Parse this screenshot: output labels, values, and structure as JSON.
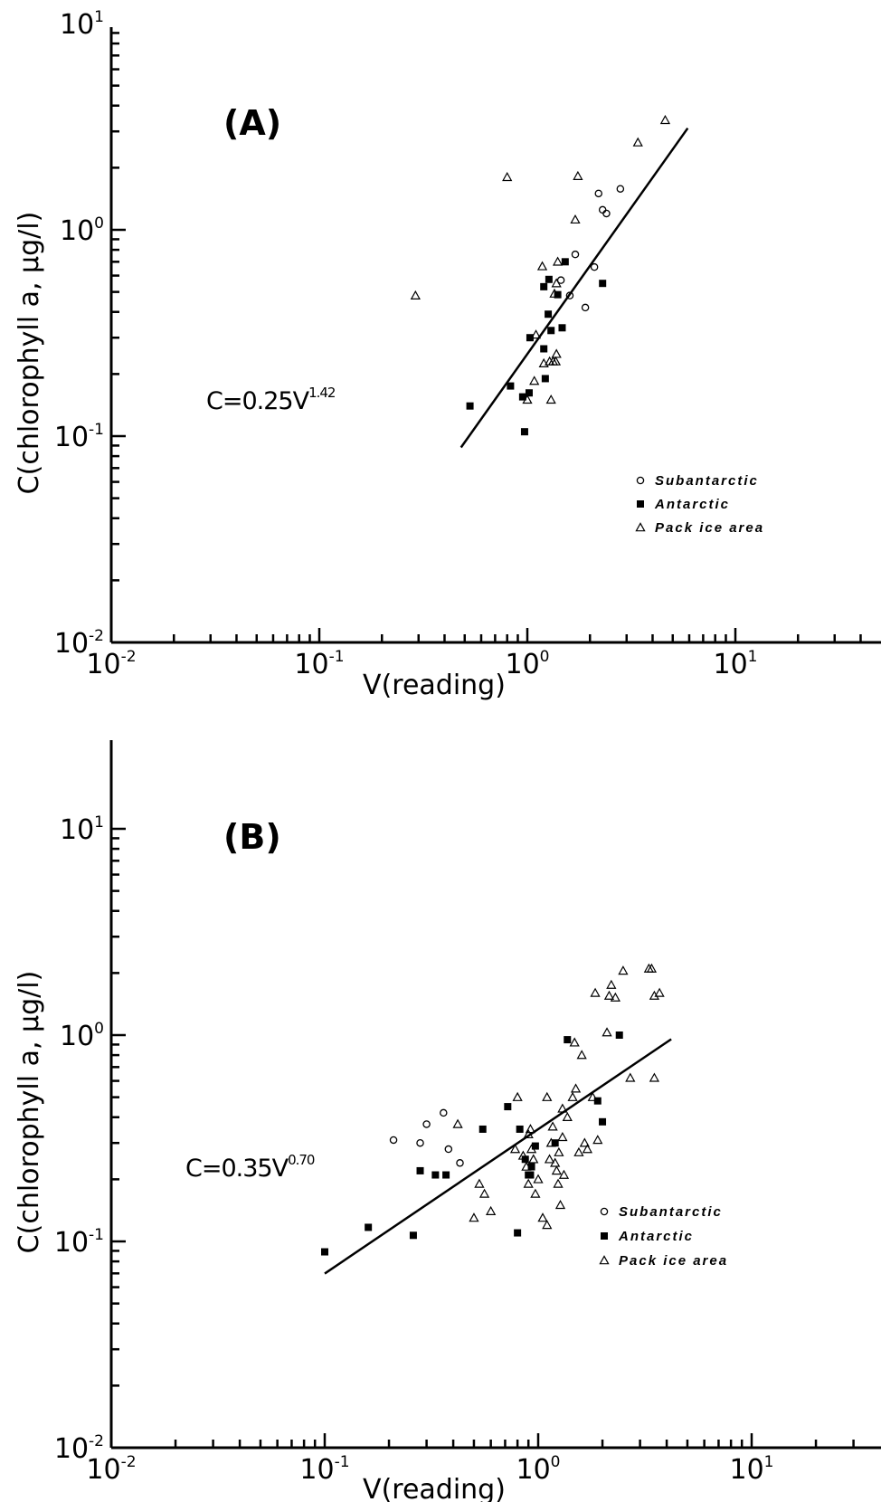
{
  "chart_data": [
    {
      "type": "scatter",
      "panel_label": "(A)",
      "equation": {
        "base": "C=0.25V",
        "exponent": "1.42"
      },
      "xlabel": "V(reading)",
      "ylabel": "C(chlorophyll a, µg/l)",
      "x_scale": "log",
      "y_scale": "log",
      "xlim": [
        0.01,
        35
      ],
      "ylim": [
        0.01,
        10
      ],
      "xticks": [
        {
          "value": 0.01,
          "base": "10",
          "exp": "-2"
        },
        {
          "value": 0.1,
          "base": "10",
          "exp": "-1"
        },
        {
          "value": 1,
          "base": "10",
          "exp": "0"
        },
        {
          "value": 10,
          "base": "10",
          "exp": "1"
        }
      ],
      "yticks": [
        {
          "value": 0.01,
          "base": "10",
          "exp": "-2"
        },
        {
          "value": 0.1,
          "base": "10",
          "exp": "-1"
        },
        {
          "value": 1,
          "base": "10",
          "exp": "0"
        },
        {
          "value": 10,
          "base": "10",
          "exp": "1"
        }
      ],
      "legend_position": "bottom-right",
      "fit_line": {
        "a": 0.25,
        "b": 1.42,
        "x_range": [
          0.48,
          5.9
        ]
      },
      "series": [
        {
          "name": "Subantarctic",
          "marker": "circle-open",
          "points": [
            [
              2.2,
              1.5
            ],
            [
              2.3,
              1.25
            ],
            [
              2.4,
              1.2
            ],
            [
              2.8,
              1.58
            ],
            [
              1.7,
              0.76
            ],
            [
              1.45,
              0.57
            ],
            [
              1.6,
              0.48
            ],
            [
              2.1,
              0.66
            ],
            [
              1.9,
              0.42
            ]
          ]
        },
        {
          "name": "Antarctic",
          "marker": "square-filled",
          "points": [
            [
              0.53,
              0.14
            ],
            [
              0.83,
              0.175
            ],
            [
              0.95,
              0.155
            ],
            [
              0.97,
              0.105
            ],
            [
              1.02,
              0.162
            ],
            [
              1.03,
              0.3
            ],
            [
              1.2,
              0.265
            ],
            [
              1.2,
              0.53
            ],
            [
              1.22,
              0.19
            ],
            [
              1.26,
              0.39
            ],
            [
              1.27,
              0.575
            ],
            [
              1.3,
              0.325
            ],
            [
              1.4,
              0.485
            ],
            [
              1.47,
              0.335
            ],
            [
              1.52,
              0.7
            ],
            [
              2.3,
              0.55
            ]
          ]
        },
        {
          "name": "Pack ice area",
          "marker": "triangle-open",
          "points": [
            [
              0.29,
              0.48
            ],
            [
              0.8,
              1.8
            ],
            [
              1.0,
              0.15
            ],
            [
              1.08,
              0.185
            ],
            [
              1.1,
              0.31
            ],
            [
              1.18,
              0.665
            ],
            [
              1.2,
              0.225
            ],
            [
              1.28,
              0.23
            ],
            [
              1.3,
              0.15
            ],
            [
              1.33,
              0.23
            ],
            [
              1.37,
              0.23
            ],
            [
              1.38,
              0.25
            ],
            [
              1.38,
              0.55
            ],
            [
              1.4,
              0.7
            ],
            [
              1.35,
              0.49
            ],
            [
              1.7,
              1.12
            ],
            [
              1.75,
              1.82
            ],
            [
              3.4,
              2.65
            ],
            [
              4.6,
              3.4
            ]
          ]
        }
      ]
    },
    {
      "type": "scatter",
      "panel_label": "(B)",
      "equation": {
        "base": "C=0.35V",
        "exponent": "0.70"
      },
      "xlabel": "V(reading)",
      "ylabel": "C(chlorophyll a, µg/l)",
      "x_scale": "log",
      "y_scale": "log",
      "xlim": [
        0.01,
        35
      ],
      "ylim": [
        0.01,
        10
      ],
      "xticks": [
        {
          "value": 0.01,
          "base": "10",
          "exp": "-2"
        },
        {
          "value": 0.1,
          "base": "10",
          "exp": "-1"
        },
        {
          "value": 1,
          "base": "10",
          "exp": "0"
        },
        {
          "value": 10,
          "base": "10",
          "exp": "1"
        }
      ],
      "yticks": [
        {
          "value": 0.01,
          "base": "10",
          "exp": "-2"
        },
        {
          "value": 0.1,
          "base": "10",
          "exp": "-1"
        },
        {
          "value": 1,
          "base": "10",
          "exp": "0"
        },
        {
          "value": 10,
          "base": "10",
          "exp": "1"
        }
      ],
      "legend_position": "bottom-right",
      "fit_line": {
        "a": 0.35,
        "b": 0.7,
        "x_range": [
          0.1,
          4.2
        ]
      },
      "series": [
        {
          "name": "Subantarctic",
          "marker": "circle-open",
          "points": [
            [
              0.21,
              0.31
            ],
            [
              0.28,
              0.3
            ],
            [
              0.3,
              0.37
            ],
            [
              0.36,
              0.42
            ],
            [
              0.38,
              0.28
            ],
            [
              0.43,
              0.24
            ]
          ]
        },
        {
          "name": "Antarctic",
          "marker": "square-filled",
          "points": [
            [
              0.1,
              0.089
            ],
            [
              0.16,
              0.117
            ],
            [
              0.26,
              0.107
            ],
            [
              0.28,
              0.22
            ],
            [
              0.33,
              0.21
            ],
            [
              0.37,
              0.21
            ],
            [
              0.55,
              0.35
            ],
            [
              0.72,
              0.45
            ],
            [
              0.8,
              0.11
            ],
            [
              0.82,
              0.35
            ],
            [
              0.87,
              0.25
            ],
            [
              0.9,
              0.21
            ],
            [
              0.92,
              0.21
            ],
            [
              0.93,
              0.23
            ],
            [
              0.97,
              0.29
            ],
            [
              1.2,
              0.3
            ],
            [
              1.37,
              0.95
            ],
            [
              1.9,
              0.48
            ],
            [
              2.0,
              0.38
            ],
            [
              2.4,
              1.0
            ]
          ]
        },
        {
          "name": "Pack ice area",
          "marker": "triangle-open",
          "points": [
            [
              0.42,
              0.37
            ],
            [
              0.5,
              0.13
            ],
            [
              0.53,
              0.19
            ],
            [
              0.56,
              0.17
            ],
            [
              0.6,
              0.14
            ],
            [
              0.78,
              0.28
            ],
            [
              0.8,
              0.5
            ],
            [
              0.85,
              0.26
            ],
            [
              0.88,
              0.23
            ],
            [
              0.9,
              0.33
            ],
            [
              0.9,
              0.19
            ],
            [
              0.92,
              0.35
            ],
            [
              0.93,
              0.28
            ],
            [
              0.95,
              0.25
            ],
            [
              0.97,
              0.17
            ],
            [
              1.0,
              0.2
            ],
            [
              1.05,
              0.13
            ],
            [
              1.1,
              0.12
            ],
            [
              1.1,
              0.5
            ],
            [
              1.13,
              0.25
            ],
            [
              1.15,
              0.3
            ],
            [
              1.17,
              0.36
            ],
            [
              1.2,
              0.24
            ],
            [
              1.22,
              0.22
            ],
            [
              1.24,
              0.19
            ],
            [
              1.25,
              0.27
            ],
            [
              1.27,
              0.15
            ],
            [
              1.3,
              0.32
            ],
            [
              1.3,
              0.44
            ],
            [
              1.32,
              0.21
            ],
            [
              1.37,
              0.4
            ],
            [
              1.45,
              0.5
            ],
            [
              1.48,
              0.92
            ],
            [
              1.5,
              0.55
            ],
            [
              1.55,
              0.27
            ],
            [
              1.6,
              0.8
            ],
            [
              1.65,
              0.3
            ],
            [
              1.7,
              0.28
            ],
            [
              1.8,
              0.5
            ],
            [
              1.85,
              1.6
            ],
            [
              1.9,
              0.31
            ],
            [
              2.1,
              1.03
            ],
            [
              2.15,
              1.55
            ],
            [
              2.2,
              1.75
            ],
            [
              2.3,
              1.52
            ],
            [
              2.5,
              2.05
            ],
            [
              2.7,
              0.62
            ],
            [
              3.3,
              2.1
            ],
            [
              3.4,
              2.1
            ],
            [
              3.5,
              0.62
            ],
            [
              3.5,
              1.55
            ],
            [
              3.7,
              1.6
            ]
          ]
        }
      ]
    }
  ]
}
